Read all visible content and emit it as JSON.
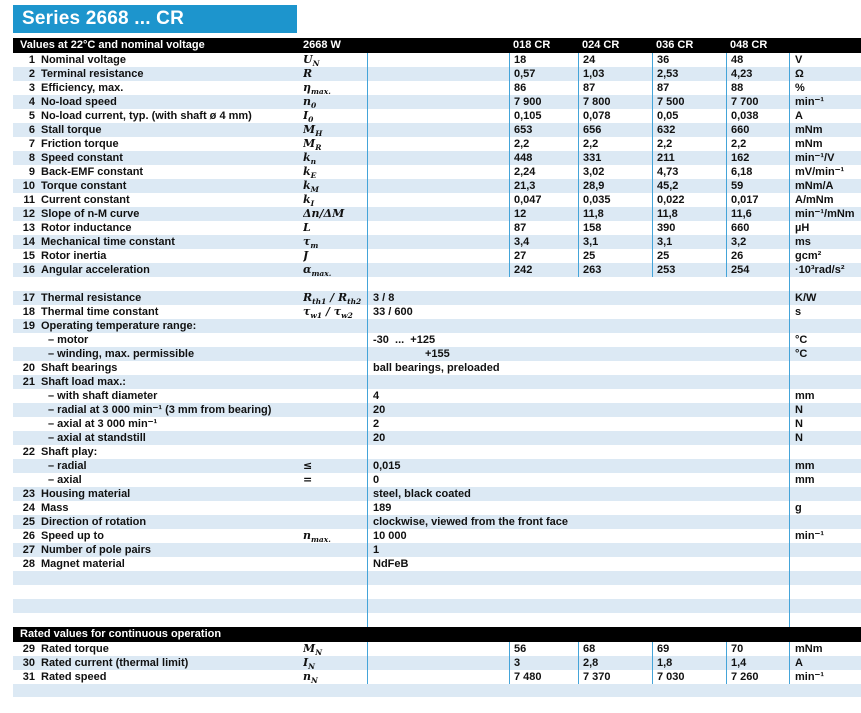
{
  "title": "Series 2668 ... CR",
  "colors": {
    "accent_blue": "#1d95cd",
    "stripe_blue": "#dce9f4",
    "separator_blue": "#44a4d9",
    "bar_black": "#000000"
  },
  "table_header": {
    "caption": "Values at 22°C and nominal voltage",
    "series": "2668 W",
    "columns": [
      "018 CR",
      "024 CR",
      "036 CR",
      "048 CR"
    ]
  },
  "rated_header": {
    "caption": "Rated values for continuous operation"
  },
  "sections": {
    "main": [
      {
        "num": "1",
        "label": "Nominal voltage",
        "symbol": [
          {
            "t": "U"
          },
          {
            "s": "N"
          }
        ],
        "values": [
          "18",
          "24",
          "36",
          "48"
        ],
        "unit": "V",
        "shaded": false
      },
      {
        "num": "2",
        "label": "Terminal resistance",
        "symbol": [
          {
            "t": "R"
          }
        ],
        "values": [
          "0,57",
          "1,03",
          "2,53",
          "4,23"
        ],
        "unit": "Ω",
        "shaded": true
      },
      {
        "num": "3",
        "label": "Efficiency, max.",
        "symbol": [
          {
            "t": "η"
          },
          {
            "s": "max."
          }
        ],
        "values": [
          "86",
          "87",
          "87",
          "88"
        ],
        "unit": "%",
        "shaded": false
      },
      {
        "num": "4",
        "label": "No-load speed",
        "symbol": [
          {
            "t": "n"
          },
          {
            "s": "0"
          }
        ],
        "values": [
          "7 900",
          "7 800",
          "7 500",
          "7 700"
        ],
        "unit": "min⁻¹",
        "shaded": true
      },
      {
        "num": "5",
        "label": "No-load current, typ. (with shaft ø 4 mm)",
        "symbol": [
          {
            "t": "I"
          },
          {
            "s": "0"
          }
        ],
        "values": [
          "0,105",
          "0,078",
          "0,05",
          "0,038"
        ],
        "unit": "A",
        "shaded": false
      },
      {
        "num": "6",
        "label": "Stall torque",
        "symbol": [
          {
            "t": "M"
          },
          {
            "s": "H"
          }
        ],
        "values": [
          "653",
          "656",
          "632",
          "660"
        ],
        "unit": "mNm",
        "shaded": true
      },
      {
        "num": "7",
        "label": "Friction torque",
        "symbol": [
          {
            "t": "M"
          },
          {
            "s": "R"
          }
        ],
        "values": [
          "2,2",
          "2,2",
          "2,2",
          "2,2"
        ],
        "unit": "mNm",
        "shaded": false
      },
      {
        "num": "8",
        "label": "Speed constant",
        "symbol": [
          {
            "t": "k"
          },
          {
            "s": "n"
          }
        ],
        "values": [
          "448",
          "331",
          "211",
          "162"
        ],
        "unit": "min⁻¹/V",
        "shaded": true
      },
      {
        "num": "9",
        "label": "Back-EMF constant",
        "symbol": [
          {
            "t": "k"
          },
          {
            "s": "E"
          }
        ],
        "values": [
          "2,24",
          "3,02",
          "4,73",
          "6,18"
        ],
        "unit": "mV/min⁻¹",
        "shaded": false
      },
      {
        "num": "10",
        "label": "Torque constant",
        "symbol": [
          {
            "t": "k"
          },
          {
            "s": "M"
          }
        ],
        "values": [
          "21,3",
          "28,9",
          "45,2",
          "59"
        ],
        "unit": "mNm/A",
        "shaded": true
      },
      {
        "num": "11",
        "label": "Current constant",
        "symbol": [
          {
            "t": "k"
          },
          {
            "s": "I"
          }
        ],
        "values": [
          "0,047",
          "0,035",
          "0,022",
          "0,017"
        ],
        "unit": "A/mNm",
        "shaded": false
      },
      {
        "num": "12",
        "label": "Slope of n-M curve",
        "symbol": [
          {
            "t": "Δn/ΔM"
          }
        ],
        "values": [
          "12",
          "11,8",
          "11,8",
          "11,6"
        ],
        "unit": "min⁻¹/mNm",
        "shaded": true
      },
      {
        "num": "13",
        "label": "Rotor inductance",
        "symbol": [
          {
            "t": "L"
          }
        ],
        "values": [
          "87",
          "158",
          "390",
          "660"
        ],
        "unit": "µH",
        "shaded": false
      },
      {
        "num": "14",
        "label": "Mechanical time constant",
        "symbol": [
          {
            "t": "τ"
          },
          {
            "s": "m"
          }
        ],
        "values": [
          "3,4",
          "3,1",
          "3,1",
          "3,2"
        ],
        "unit": "ms",
        "shaded": true
      },
      {
        "num": "15",
        "label": "Rotor inertia",
        "symbol": [
          {
            "t": "J"
          }
        ],
        "values": [
          "27",
          "25",
          "25",
          "26"
        ],
        "unit": "gcm²",
        "shaded": false
      },
      {
        "num": "16",
        "label": "Angular acceleration",
        "symbol": [
          {
            "t": "α"
          },
          {
            "s": "max."
          }
        ],
        "values": [
          "242",
          "263",
          "253",
          "254"
        ],
        "unit": "·10³rad/s²",
        "shaded": true
      }
    ],
    "extended": [
      {
        "num": "",
        "label": "",
        "symbol": [],
        "value": "",
        "unit": "",
        "shaded": false,
        "indent": false,
        "value_indent": false
      },
      {
        "num": "17",
        "label": "Thermal resistance",
        "symbol": [
          {
            "t": "R"
          },
          {
            "s": "th1"
          },
          {
            "t": " / R"
          },
          {
            "s": "th2"
          }
        ],
        "value": "3 / 8",
        "unit": "K/W",
        "shaded": true,
        "indent": false,
        "value_indent": false
      },
      {
        "num": "18",
        "label": "Thermal time constant",
        "symbol": [
          {
            "t": "τ"
          },
          {
            "s": "w1"
          },
          {
            "t": " / τ"
          },
          {
            "s": "w2"
          }
        ],
        "value": "33 / 600",
        "unit": "s",
        "shaded": false,
        "indent": false,
        "value_indent": false
      },
      {
        "num": "19",
        "label": "Operating temperature range:",
        "symbol": [],
        "value": "",
        "unit": "",
        "shaded": true,
        "indent": false,
        "value_indent": false
      },
      {
        "num": "",
        "label": "– motor",
        "symbol": [],
        "value": "-30  ...  +125",
        "unit": "°C",
        "shaded": false,
        "indent": true,
        "value_indent": false
      },
      {
        "num": "",
        "label": "– winding, max. permissible",
        "symbol": [],
        "value": "+155",
        "unit": "°C",
        "shaded": true,
        "indent": true,
        "value_indent": true
      },
      {
        "num": "20",
        "label": "Shaft bearings",
        "symbol": [],
        "value": "ball bearings, preloaded",
        "unit": "",
        "shaded": false,
        "indent": false,
        "value_indent": false
      },
      {
        "num": "21",
        "label": "Shaft load max.:",
        "symbol": [],
        "value": "",
        "unit": "",
        "shaded": true,
        "indent": false,
        "value_indent": false
      },
      {
        "num": "",
        "label": "– with shaft diameter",
        "symbol": [],
        "value": "4",
        "unit": "mm",
        "shaded": false,
        "indent": true,
        "value_indent": false
      },
      {
        "num": "",
        "label": "– radial at 3 000 min⁻¹ (3 mm from bearing)",
        "symbol": [],
        "value": "20",
        "unit": "N",
        "shaded": true,
        "indent": true,
        "value_indent": false
      },
      {
        "num": "",
        "label": "– axial at 3 000 min⁻¹",
        "symbol": [],
        "value": "2",
        "unit": "N",
        "shaded": false,
        "indent": true,
        "value_indent": false
      },
      {
        "num": "",
        "label": "– axial at standstill",
        "symbol": [],
        "value": "20",
        "unit": "N",
        "shaded": true,
        "indent": true,
        "value_indent": false
      },
      {
        "num": "22",
        "label": "Shaft play:",
        "symbol": [],
        "value": "",
        "unit": "",
        "shaded": false,
        "indent": false,
        "value_indent": false
      },
      {
        "num": "",
        "label": "– radial",
        "symbol": [
          {
            "t": "≤"
          }
        ],
        "value": "0,015",
        "unit": "mm",
        "shaded": true,
        "indent": true,
        "value_indent": false
      },
      {
        "num": "",
        "label": "– axial",
        "symbol": [
          {
            "t": "="
          }
        ],
        "value": "0",
        "unit": "mm",
        "shaded": false,
        "indent": true,
        "value_indent": false
      },
      {
        "num": "23",
        "label": "Housing material",
        "symbol": [],
        "value": "steel, black coated",
        "unit": "",
        "shaded": true,
        "indent": false,
        "value_indent": false
      },
      {
        "num": "24",
        "label": "Mass",
        "symbol": [],
        "value": "189",
        "unit": "g",
        "shaded": false,
        "indent": false,
        "value_indent": false
      },
      {
        "num": "25",
        "label": "Direction of rotation",
        "symbol": [],
        "value": "clockwise, viewed from the front face",
        "unit": "",
        "shaded": true,
        "indent": false,
        "value_indent": false
      },
      {
        "num": "26",
        "label": "Speed up to",
        "symbol": [
          {
            "t": "n"
          },
          {
            "s": "max."
          }
        ],
        "value": "10 000",
        "unit": "min⁻¹",
        "shaded": false,
        "indent": false,
        "value_indent": false
      },
      {
        "num": "27",
        "label": "Number of pole pairs",
        "symbol": [],
        "value": "1",
        "unit": "",
        "shaded": true,
        "indent": false,
        "value_indent": false
      },
      {
        "num": "28",
        "label": "Magnet material",
        "symbol": [],
        "value": "NdFeB",
        "unit": "",
        "shaded": false,
        "indent": false,
        "value_indent": false
      },
      {
        "num": "",
        "label": "",
        "symbol": [],
        "value": "",
        "unit": "",
        "shaded": true,
        "indent": false,
        "value_indent": false
      },
      {
        "num": "",
        "label": "",
        "symbol": [],
        "value": "",
        "unit": "",
        "shaded": false,
        "indent": false,
        "value_indent": false
      },
      {
        "num": "",
        "label": "",
        "symbol": [],
        "value": "",
        "unit": "",
        "shaded": true,
        "indent": false,
        "value_indent": false
      },
      {
        "num": "",
        "label": "",
        "symbol": [],
        "value": "",
        "unit": "",
        "shaded": false,
        "indent": false,
        "value_indent": false
      }
    ],
    "rated": [
      {
        "num": "29",
        "label": "Rated torque",
        "symbol": [
          {
            "t": "M"
          },
          {
            "s": "N"
          }
        ],
        "values": [
          "56",
          "68",
          "69",
          "70"
        ],
        "unit": "mNm",
        "shaded": false
      },
      {
        "num": "30",
        "label": "Rated current (thermal limit)",
        "symbol": [
          {
            "t": "I"
          },
          {
            "s": "N"
          }
        ],
        "values": [
          "3",
          "2,8",
          "1,8",
          "1,4"
        ],
        "unit": "A",
        "shaded": true
      },
      {
        "num": "31",
        "label": "Rated speed",
        "symbol": [
          {
            "t": "n"
          },
          {
            "s": "N"
          }
        ],
        "values": [
          "7 480",
          "7 370",
          "7 030",
          "7 260"
        ],
        "unit": "min⁻¹",
        "shaded": false
      }
    ]
  }
}
